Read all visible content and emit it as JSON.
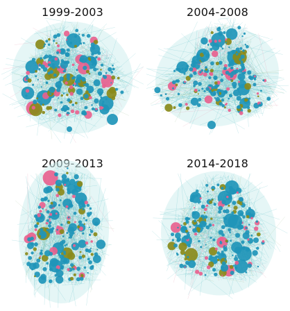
{
  "figure": {
    "panels": [
      {
        "id": "p1",
        "title": "1999-2003",
        "seed": 11
      },
      {
        "id": "p2",
        "title": "2004-2008",
        "seed": 23
      },
      {
        "id": "p3",
        "title": "2009-2013",
        "seed": 37
      },
      {
        "id": "p4",
        "title": "2014-2018",
        "seed": 51
      }
    ],
    "node_colors": {
      "main": "#1f95b9",
      "secondary": "#8a8a1a",
      "tertiary": "#e8628f"
    },
    "edge_colors": [
      "#6cc6cc",
      "#a9c7a0",
      "#e4a3b8"
    ]
  }
}
